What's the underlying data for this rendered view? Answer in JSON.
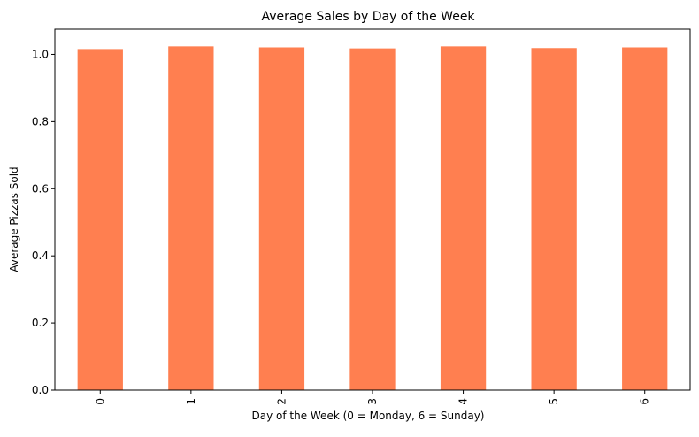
{
  "chart_data": {
    "type": "bar",
    "title": "Average Sales by Day of the Week",
    "xlabel": "Day of the Week (0 = Monday, 6 = Sunday)",
    "ylabel": "Average Pizzas Sold",
    "categories": [
      "0",
      "1",
      "2",
      "3",
      "4",
      "5",
      "6"
    ],
    "values": [
      1.016,
      1.024,
      1.021,
      1.018,
      1.024,
      1.019,
      1.021
    ],
    "ylim": [
      0,
      1.075
    ],
    "yticks": [
      "0.0",
      "0.2",
      "0.4",
      "0.6",
      "0.8",
      "1.0"
    ],
    "x_tick_rotation": "vertical",
    "grid": false,
    "bar_color": "#FF7F50"
  }
}
